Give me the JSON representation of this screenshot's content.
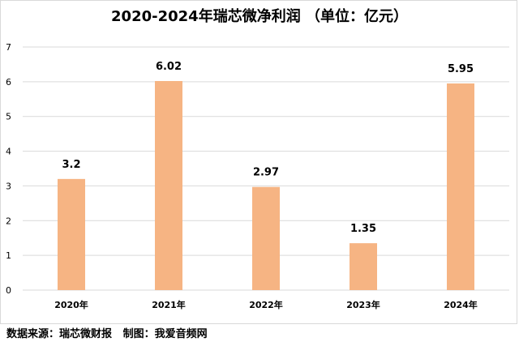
{
  "chart_data": {
    "type": "bar",
    "title": "2020-2024年瑞芯微净利润 （单位：亿元）",
    "categories": [
      "2020年",
      "2021年",
      "2022年",
      "2023年",
      "2024年"
    ],
    "values": [
      3.2,
      6.02,
      2.97,
      1.35,
      5.95
    ],
    "value_labels": [
      "3.2",
      "6.02",
      "2.97",
      "1.35",
      "5.95"
    ],
    "ylim": [
      0,
      7
    ],
    "yticks": [
      "0",
      "1",
      "2",
      "3",
      "4",
      "5",
      "6",
      "7"
    ],
    "grid": true,
    "bar_color": "#f6b483",
    "grid_color": "#d9d9d9"
  },
  "footer": {
    "source": "数据来源：瑞芯微财报   制图：我爱音频网"
  }
}
